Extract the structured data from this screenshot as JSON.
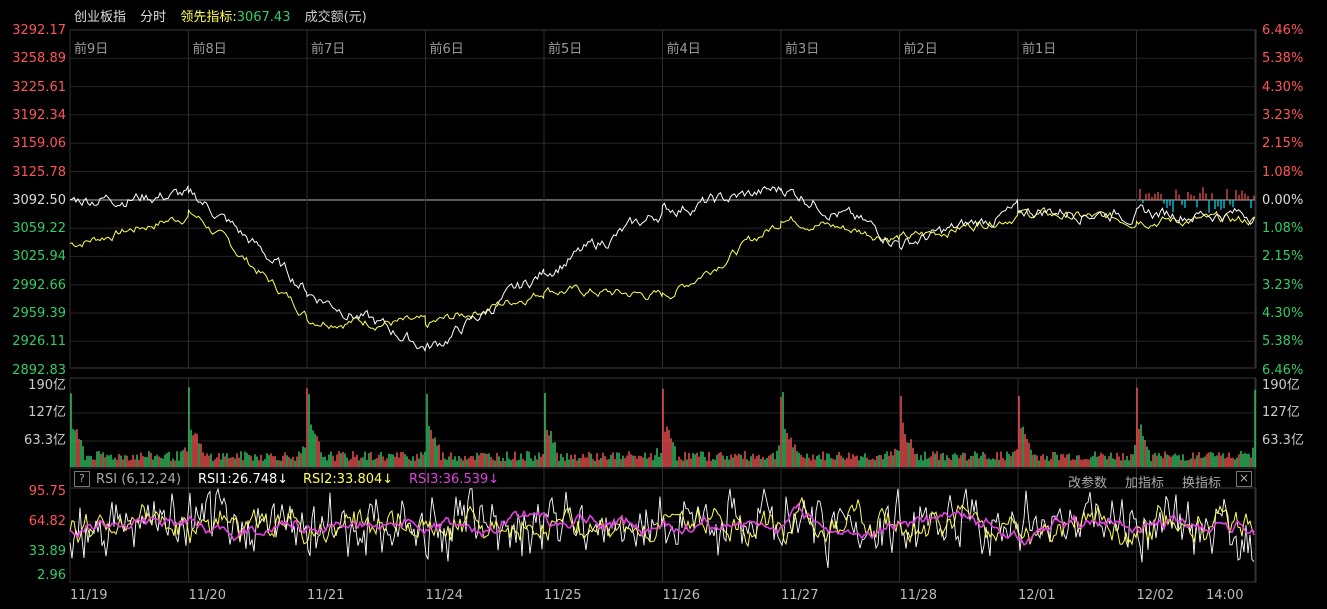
{
  "header": {
    "title": "创业板指",
    "mode": "分时",
    "lead_label": "领先指标:",
    "lead_value": "3067.43",
    "volume_label": "成交额(元)"
  },
  "price_axis": {
    "left": [
      "3292.17",
      "3258.89",
      "3225.61",
      "3192.34",
      "3159.06",
      "3125.78",
      "3092.50",
      "3059.22",
      "3025.94",
      "2992.66",
      "2959.39",
      "2926.11",
      "2892.83"
    ],
    "right": [
      "6.46%",
      "5.38%",
      "4.30%",
      "3.23%",
      "2.15%",
      "1.08%",
      "0.00%",
      "1.08%",
      "2.15%",
      "3.23%",
      "4.30%",
      "5.38%",
      "6.46%"
    ]
  },
  "day_labels": [
    "前9日",
    "前8日",
    "前7日",
    "前6日",
    "前5日",
    "前4日",
    "前3日",
    "前2日",
    "前1日"
  ],
  "volume_axis": {
    "left": [
      "190亿",
      "127亿",
      "63.3亿"
    ],
    "right": [
      "190亿",
      "127亿",
      "63.3亿"
    ]
  },
  "rsi": {
    "help": "?",
    "name": "RSI (6,12,24)",
    "rsi1": "RSI1:26.748↓",
    "rsi2": "RSI2:33.804↓",
    "rsi3": "RSI3:36.539↓",
    "btn_params": "改参数",
    "btn_add": "加指标",
    "btn_switch": "换指标",
    "close": "×",
    "axis": [
      "95.75",
      "64.82",
      "33.89",
      "2.96"
    ]
  },
  "dates": [
    "11/19",
    "11/20",
    "11/21",
    "11/24",
    "11/25",
    "11/26",
    "11/27",
    "11/28",
    "12/01",
    "12/02",
    "14:00"
  ],
  "colors": {
    "up": "#ff5555",
    "down": "#33cc66",
    "price": "#ffffff",
    "lead": "#ffff55",
    "rsi3": "#e040e0",
    "accent": "#00e5ff"
  },
  "chart_data": {
    "type": "line",
    "title": "创业板指 分时",
    "x": [
      "11/19",
      "11/20",
      "11/21",
      "11/24",
      "11/25",
      "11/26",
      "11/27",
      "11/28",
      "12/01",
      "12/02"
    ],
    "series": [
      {
        "name": "",
        "values": [
          3092,
          3098,
          2980,
          2915,
          3010,
          3080,
          3105,
          3040,
          3080,
          3075
        ]
      },
      {
        "name": "领先指标",
        "values": [
          3040,
          3075,
          2950,
          2945,
          2985,
          2978,
          3070,
          3045,
          3075,
          3067.43
        ]
      }
    ],
    "ylim": [
      2892.83,
      3292.17
    ],
    "reference": 3092.5
  }
}
